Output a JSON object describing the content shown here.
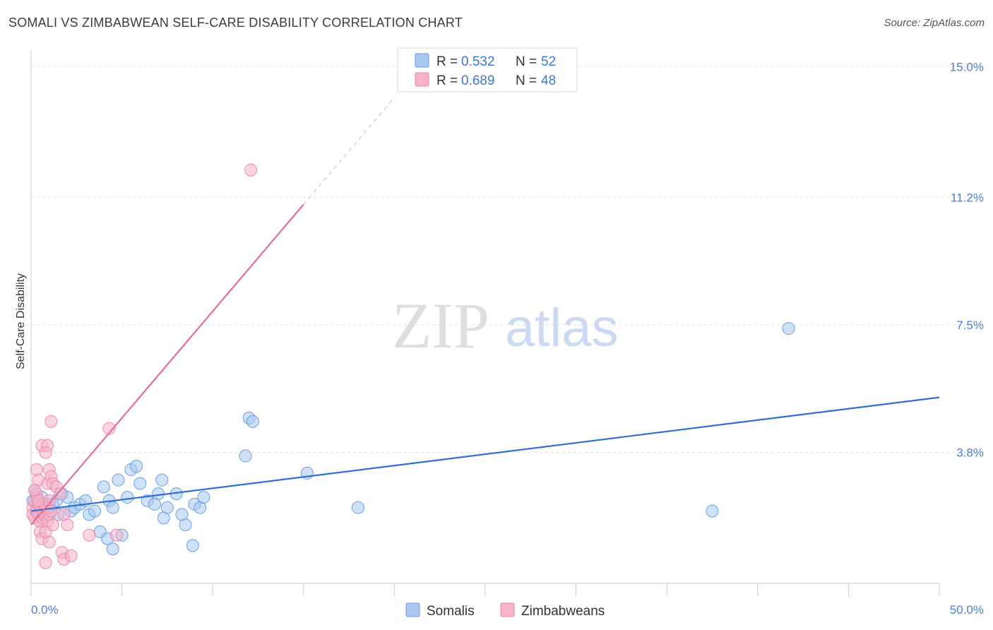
{
  "header": {
    "title": "SOMALI VS ZIMBABWEAN SELF-CARE DISABILITY CORRELATION CHART",
    "source": "Source: ZipAtlas.com"
  },
  "legend": {
    "r_label": "R =",
    "n_label": "N =",
    "somali_r": "0.532",
    "somali_n": "52",
    "zimbabwean_r": "0.689",
    "zimbabwean_n": "48"
  },
  "watermark": {
    "zip": "ZIP",
    "atlas": "atlas"
  },
  "colors": {
    "somali_fill": "#a8c8f0",
    "somali_stroke": "#6a9ee0",
    "somali_line": "#2f6fd0",
    "zimbabwean_fill": "#f5b3c8",
    "zimbabwean_stroke": "#ea8aaa",
    "zimbabwean_line": "#e46e96",
    "grid": "#dcdcdc"
  },
  "chart_data": {
    "type": "scatter",
    "title": "SOMALI VS ZIMBABWEAN SELF-CARE DISABILITY CORRELATION CHART",
    "xlabel": "",
    "ylabel": "Self-Care Disability",
    "xlim": [
      0,
      50
    ],
    "ylim": [
      0,
      15.5
    ],
    "x_tick_labels": [
      "0.0%",
      "50.0%"
    ],
    "y_ticks": [
      3.8,
      7.5,
      11.2,
      15.0
    ],
    "y_tick_labels": [
      "3.8%",
      "7.5%",
      "11.2%",
      "15.0%"
    ],
    "series": [
      {
        "name": "Somalis",
        "r": 0.532,
        "n": 52,
        "trend": {
          "x": [
            0,
            50
          ],
          "y": [
            2.1,
            5.4
          ]
        },
        "points": [
          [
            0.1,
            2.4
          ],
          [
            0.2,
            2.7
          ],
          [
            0.3,
            2.5
          ],
          [
            0.4,
            2.3
          ],
          [
            0.5,
            2.2
          ],
          [
            0.6,
            2.5
          ],
          [
            0.7,
            2.3
          ],
          [
            0.8,
            2.1
          ],
          [
            1.0,
            2.2
          ],
          [
            1.2,
            2.3
          ],
          [
            1.4,
            2.4
          ],
          [
            1.5,
            2.0
          ],
          [
            1.7,
            2.6
          ],
          [
            2.0,
            2.5
          ],
          [
            2.2,
            2.1
          ],
          [
            2.4,
            2.2
          ],
          [
            2.7,
            2.3
          ],
          [
            3.0,
            2.4
          ],
          [
            3.2,
            2.0
          ],
          [
            3.5,
            2.1
          ],
          [
            3.8,
            1.5
          ],
          [
            4.0,
            2.8
          ],
          [
            4.3,
            2.4
          ],
          [
            4.5,
            2.2
          ],
          [
            4.8,
            3.0
          ],
          [
            5.0,
            1.4
          ],
          [
            5.3,
            2.5
          ],
          [
            5.5,
            3.3
          ],
          [
            5.8,
            3.4
          ],
          [
            6.0,
            2.9
          ],
          [
            6.4,
            2.4
          ],
          [
            7.0,
            2.6
          ],
          [
            7.3,
            1.9
          ],
          [
            7.5,
            2.2
          ],
          [
            8.0,
            2.6
          ],
          [
            8.3,
            2.0
          ],
          [
            8.5,
            1.7
          ],
          [
            9.0,
            2.3
          ],
          [
            9.3,
            2.2
          ],
          [
            9.5,
            2.5
          ],
          [
            12.0,
            4.8
          ],
          [
            12.2,
            4.7
          ],
          [
            11.8,
            3.7
          ],
          [
            15.2,
            3.2
          ],
          [
            18.0,
            2.2
          ],
          [
            4.2,
            1.3
          ],
          [
            4.5,
            1.0
          ],
          [
            8.9,
            1.1
          ],
          [
            7.2,
            3.0
          ],
          [
            6.8,
            2.3
          ],
          [
            37.5,
            2.1
          ],
          [
            41.7,
            7.4
          ]
        ]
      },
      {
        "name": "Zimbabweans",
        "r": 0.689,
        "n": 48,
        "trend": {
          "x": [
            0,
            15
          ],
          "y": [
            1.7,
            11.0
          ]
        },
        "trend_dashed": {
          "x": [
            15,
            20
          ],
          "y": [
            11.0,
            14.1
          ]
        },
        "points": [
          [
            0.1,
            2.2
          ],
          [
            0.1,
            2.0
          ],
          [
            0.2,
            2.4
          ],
          [
            0.2,
            1.9
          ],
          [
            0.3,
            2.1
          ],
          [
            0.3,
            2.6
          ],
          [
            0.4,
            2.0
          ],
          [
            0.4,
            2.3
          ],
          [
            0.5,
            1.8
          ],
          [
            0.5,
            2.2
          ],
          [
            0.6,
            2.1
          ],
          [
            0.6,
            1.9
          ],
          [
            0.7,
            2.3
          ],
          [
            0.7,
            2.0
          ],
          [
            0.8,
            2.2
          ],
          [
            0.9,
            1.8
          ],
          [
            1.0,
            2.0
          ],
          [
            1.0,
            2.4
          ],
          [
            1.1,
            2.1
          ],
          [
            0.5,
            1.5
          ],
          [
            0.6,
            1.3
          ],
          [
            0.8,
            1.5
          ],
          [
            1.0,
            1.2
          ],
          [
            1.2,
            1.7
          ],
          [
            0.3,
            3.3
          ],
          [
            0.4,
            3.0
          ],
          [
            0.9,
            2.9
          ],
          [
            1.0,
            3.3
          ],
          [
            1.1,
            3.1
          ],
          [
            1.2,
            2.9
          ],
          [
            0.6,
            4.0
          ],
          [
            0.9,
            4.0
          ],
          [
            0.8,
            3.8
          ],
          [
            1.1,
            4.7
          ],
          [
            1.4,
            2.8
          ],
          [
            1.6,
            2.6
          ],
          [
            1.8,
            2.0
          ],
          [
            2.0,
            1.7
          ],
          [
            1.7,
            0.9
          ],
          [
            1.8,
            0.7
          ],
          [
            2.2,
            0.8
          ],
          [
            0.8,
            0.6
          ],
          [
            3.2,
            1.4
          ],
          [
            4.7,
            1.4
          ],
          [
            4.3,
            4.5
          ],
          [
            12.1,
            12.0
          ],
          [
            0.2,
            2.7
          ],
          [
            0.4,
            2.4
          ]
        ]
      }
    ]
  },
  "bottom_legend": {
    "somali": "Somalis",
    "zimbabwean": "Zimbabweans"
  }
}
